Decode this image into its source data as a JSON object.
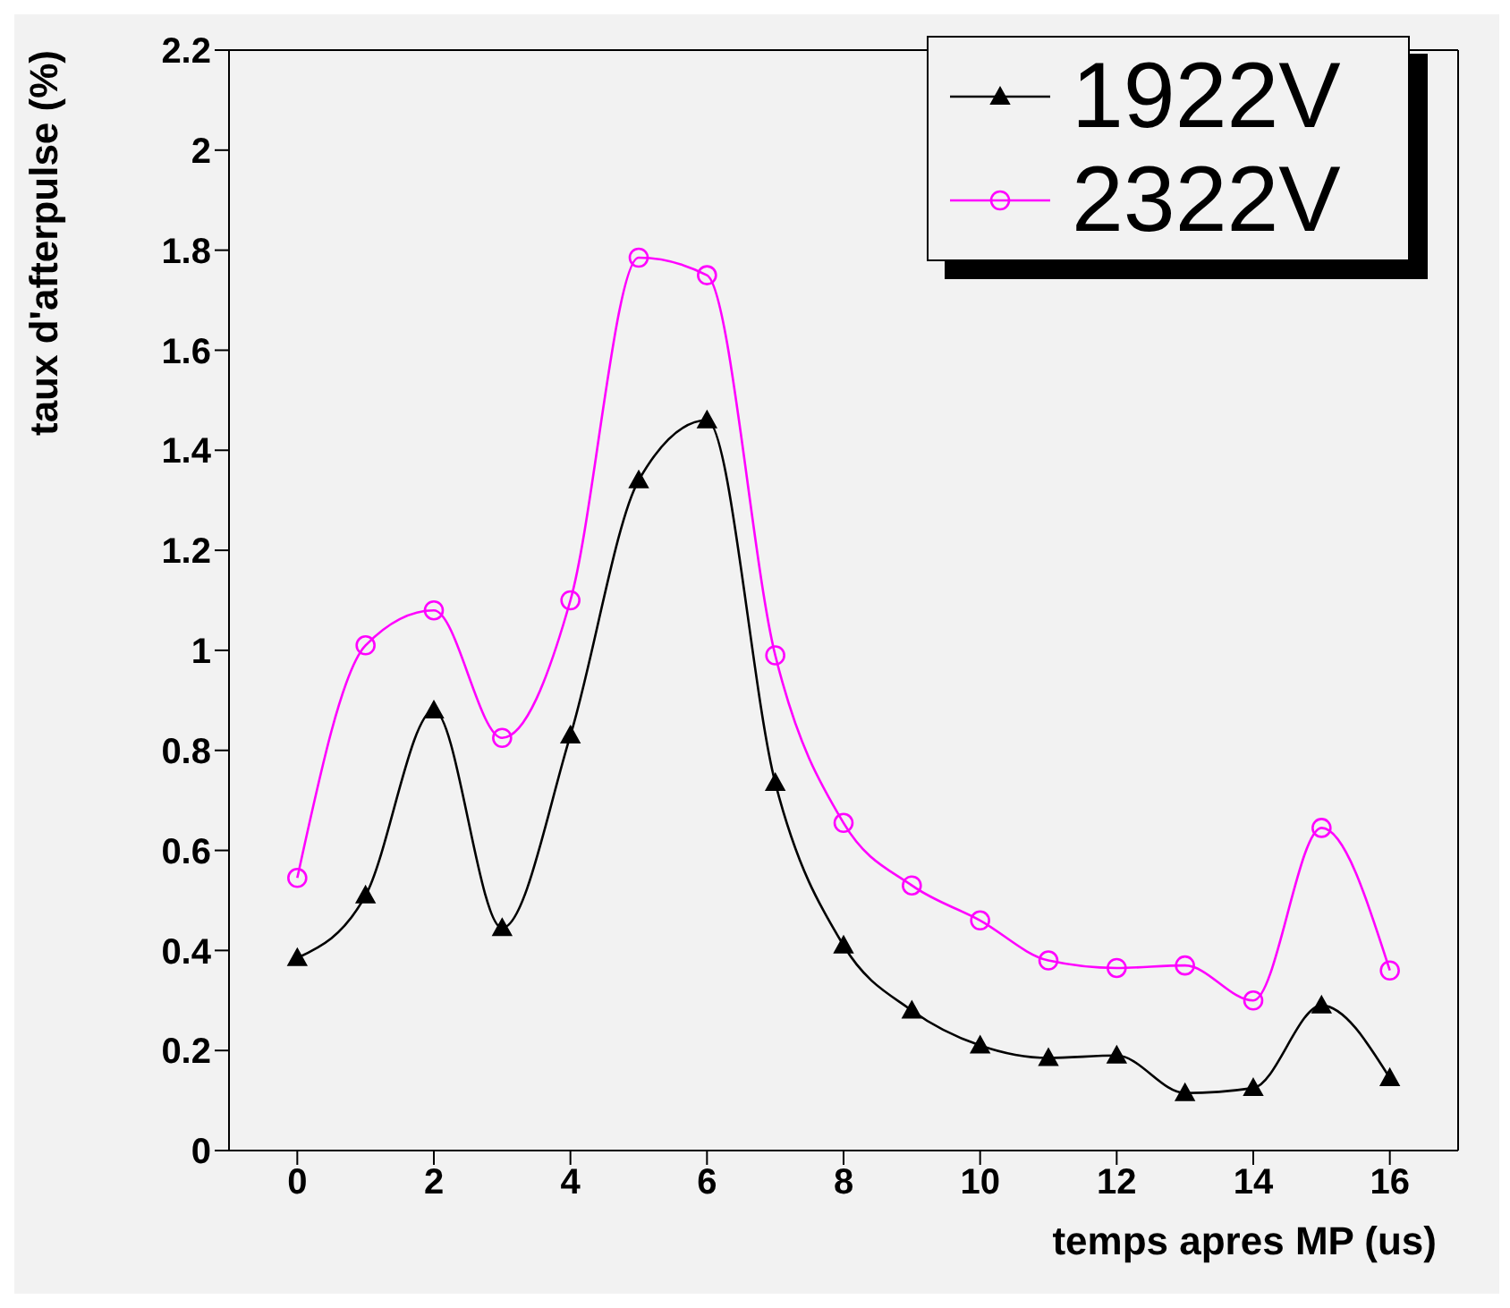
{
  "chart_data": {
    "type": "line",
    "xlabel": "temps apres MP (us)",
    "ylabel": "taux d'afterpulse (%)",
    "x": [
      0,
      1,
      2,
      3,
      4,
      5,
      6,
      7,
      8,
      9,
      10,
      11,
      12,
      13,
      14,
      15,
      16
    ],
    "series": [
      {
        "name": "1922V",
        "color": "#000000",
        "marker": "triangle",
        "values": [
          0.385,
          0.51,
          0.88,
          0.445,
          0.83,
          1.34,
          1.46,
          0.735,
          0.41,
          0.28,
          0.21,
          0.185,
          0.19,
          0.115,
          0.125,
          0.29,
          0.145
        ]
      },
      {
        "name": "2322V",
        "color": "#ff00ff",
        "marker": "circle",
        "values": [
          0.545,
          1.01,
          1.08,
          0.825,
          1.1,
          1.785,
          1.75,
          0.99,
          0.655,
          0.53,
          0.46,
          0.38,
          0.365,
          0.37,
          0.3,
          0.645,
          0.36
        ]
      }
    ],
    "xlim": [
      -1,
      17
    ],
    "xticks": [
      0,
      2,
      4,
      6,
      8,
      10,
      12,
      14,
      16
    ],
    "ylim": [
      0,
      2.2
    ],
    "yticks": [
      0,
      0.2,
      0.4,
      0.6,
      0.8,
      1,
      1.2,
      1.4,
      1.6,
      1.8,
      2,
      2.2
    ],
    "legend": "top right"
  }
}
